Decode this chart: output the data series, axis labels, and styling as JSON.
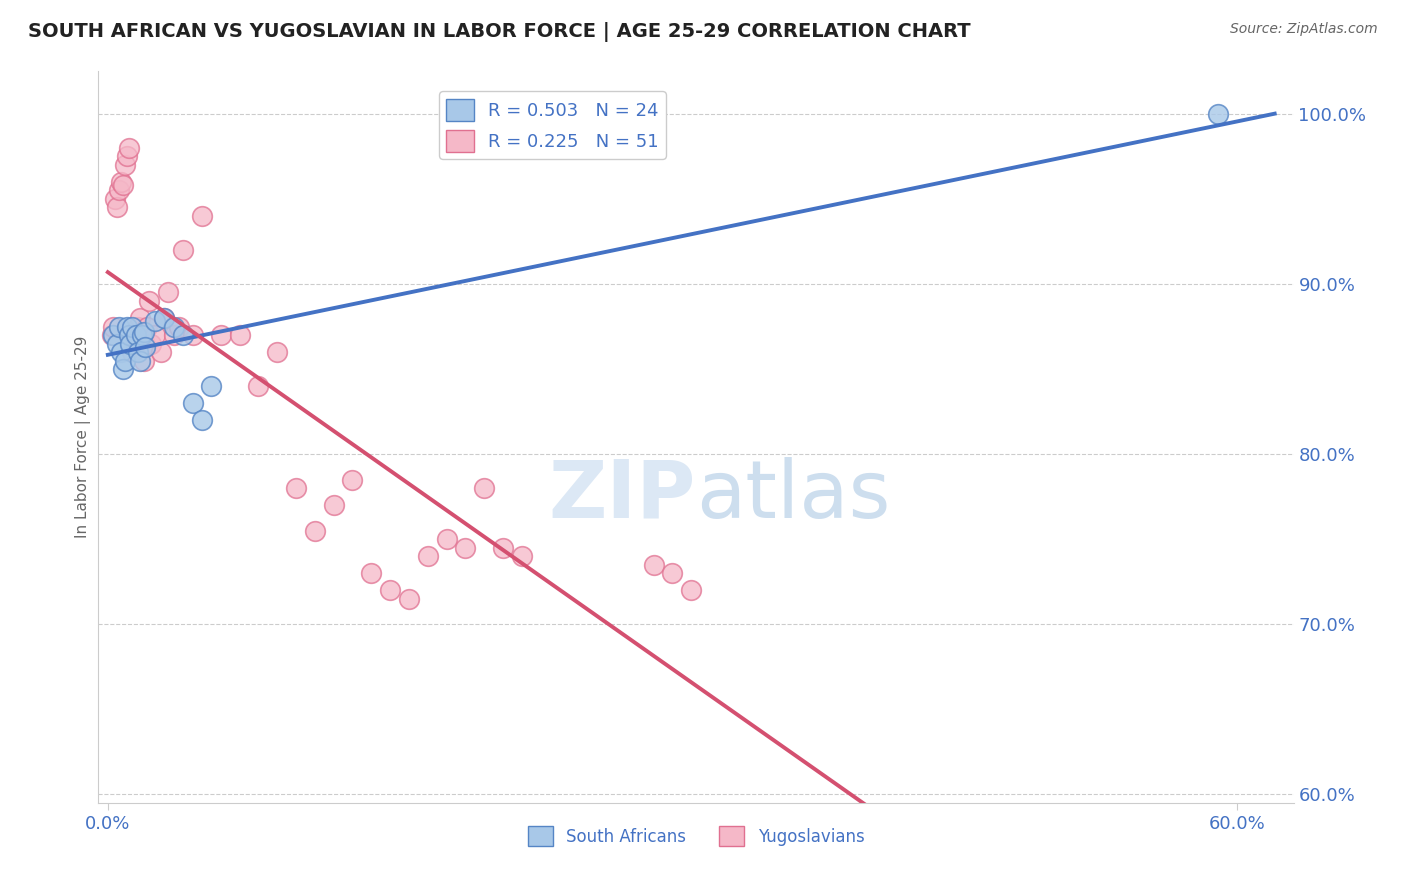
{
  "title": "SOUTH AFRICAN VS YUGOSLAVIAN IN LABOR FORCE | AGE 25-29 CORRELATION CHART",
  "source": "Source: ZipAtlas.com",
  "ylabel": "In Labor Force | Age 25-29",
  "y_ticks": [
    0.6,
    0.7,
    0.8,
    0.9,
    1.0
  ],
  "y_tick_labels": [
    "60.0%",
    "70.0%",
    "80.0%",
    "90.0%",
    "100.0%"
  ],
  "xlim": [
    -0.005,
    0.63
  ],
  "ylim": [
    0.595,
    1.025
  ],
  "r_blue": 0.503,
  "n_blue": 24,
  "r_pink": 0.225,
  "n_pink": 51,
  "blue_color": "#a8c8e8",
  "pink_color": "#f5b8c8",
  "blue_edge_color": "#5585c5",
  "pink_edge_color": "#e07090",
  "blue_line_color": "#4472c4",
  "pink_line_color": "#d45070",
  "grid_color": "#cccccc",
  "background_color": "#ffffff",
  "title_color": "#222222",
  "axis_label_color": "#4472c4",
  "watermark_color": "#dce8f5",
  "south_african_x": [
    0.003,
    0.005,
    0.006,
    0.007,
    0.008,
    0.009,
    0.01,
    0.011,
    0.012,
    0.013,
    0.015,
    0.016,
    0.017,
    0.018,
    0.019,
    0.02,
    0.025,
    0.03,
    0.035,
    0.04,
    0.045,
    0.05,
    0.055,
    0.59
  ],
  "south_african_y": [
    0.87,
    0.865,
    0.875,
    0.86,
    0.85,
    0.855,
    0.875,
    0.87,
    0.865,
    0.875,
    0.87,
    0.86,
    0.855,
    0.87,
    0.872,
    0.863,
    0.878,
    0.88,
    0.875,
    0.87,
    0.83,
    0.82,
    0.84,
    1.0
  ],
  "yugoslav_x": [
    0.002,
    0.003,
    0.004,
    0.005,
    0.006,
    0.007,
    0.008,
    0.009,
    0.01,
    0.011,
    0.012,
    0.013,
    0.014,
    0.015,
    0.016,
    0.017,
    0.018,
    0.019,
    0.02,
    0.021,
    0.022,
    0.023,
    0.025,
    0.028,
    0.03,
    0.032,
    0.035,
    0.038,
    0.04,
    0.045,
    0.05,
    0.06,
    0.07,
    0.08,
    0.09,
    0.1,
    0.11,
    0.12,
    0.13,
    0.14,
    0.15,
    0.16,
    0.17,
    0.18,
    0.19,
    0.2,
    0.21,
    0.22,
    0.29,
    0.3,
    0.31
  ],
  "yugoslav_y": [
    0.87,
    0.875,
    0.95,
    0.945,
    0.955,
    0.96,
    0.958,
    0.97,
    0.975,
    0.98,
    0.87,
    0.86,
    0.865,
    0.87,
    0.875,
    0.88,
    0.87,
    0.855,
    0.865,
    0.875,
    0.89,
    0.865,
    0.87,
    0.86,
    0.88,
    0.895,
    0.87,
    0.875,
    0.92,
    0.87,
    0.94,
    0.87,
    0.87,
    0.84,
    0.86,
    0.78,
    0.755,
    0.77,
    0.785,
    0.73,
    0.72,
    0.715,
    0.74,
    0.75,
    0.745,
    0.78,
    0.745,
    0.74,
    0.735,
    0.73,
    0.72
  ]
}
